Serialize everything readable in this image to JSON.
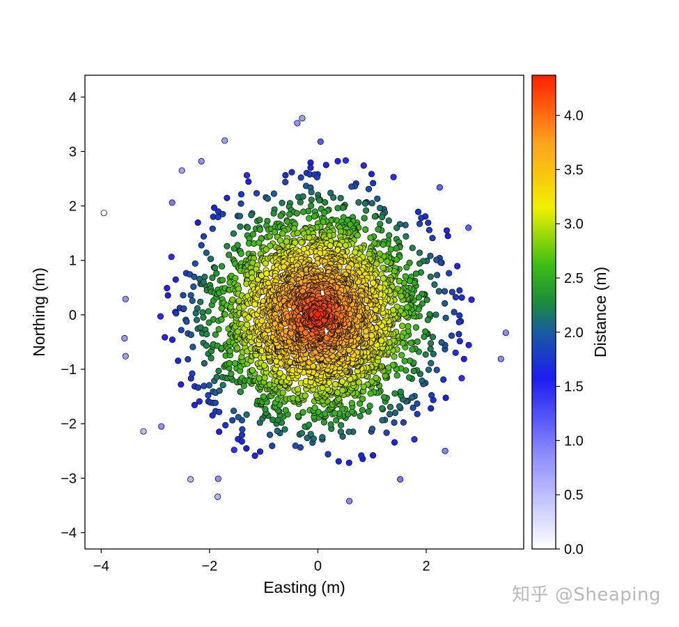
{
  "chart_data": {
    "type": "scatter",
    "title": "",
    "xlabel": "Easting (m)",
    "ylabel": "Northing (m)",
    "xlim": [
      -4.3,
      3.8
    ],
    "ylim": [
      -4.3,
      4.4
    ],
    "xticks": [
      -4,
      -2,
      0,
      2
    ],
    "xtick_labels": [
      "−4",
      "−2",
      "0",
      "2"
    ],
    "yticks": [
      -4,
      -3,
      -2,
      -1,
      0,
      1,
      2,
      3,
      4
    ],
    "ytick_labels": [
      "−4",
      "−3",
      "−2",
      "−1",
      "0",
      "1",
      "2",
      "3",
      "4"
    ],
    "grid": false,
    "point_count": 3000,
    "distribution": "2D standard normal centered at (0, 0)",
    "color_encoding": "distance from origin, reversed (4.37 - r)",
    "colorbar": {
      "label": "Distance (m)",
      "range": [
        0.0,
        4.37
      ],
      "ticks": [
        0.0,
        0.5,
        1.0,
        1.5,
        2.0,
        2.5,
        3.0,
        3.5,
        4.0
      ],
      "tick_labels": [
        "0.0",
        "0.5",
        "1.0",
        "1.5",
        "2.0",
        "2.5",
        "3.0",
        "3.5",
        "4.0"
      ],
      "colors": [
        "#ffffff",
        "#8c8cff",
        "#1c1cf0",
        "#1a5ca0",
        "#1c8c3c",
        "#3cbe14",
        "#f0f000",
        "#ffa01e",
        "#ff2000"
      ],
      "stops": [
        0.0,
        0.2,
        0.36,
        0.46,
        0.52,
        0.6,
        0.72,
        0.86,
        1.0
      ]
    },
    "outer_points": [
      {
        "x": -3.95,
        "y": 1.87
      },
      {
        "x": -3.55,
        "y": 0.29
      },
      {
        "x": -3.57,
        "y": -0.43
      },
      {
        "x": -3.55,
        "y": -0.76
      },
      {
        "x": -3.22,
        "y": -2.14
      },
      {
        "x": -2.89,
        "y": -2.05
      },
      {
        "x": -2.35,
        "y": -3.02
      },
      {
        "x": -1.84,
        "y": -3.01
      },
      {
        "x": -1.85,
        "y": -3.34
      },
      {
        "x": 0.58,
        "y": -3.42
      },
      {
        "x": 1.52,
        "y": -3.02
      },
      {
        "x": 2.35,
        "y": -2.5
      },
      {
        "x": 3.38,
        "y": -0.81
      },
      {
        "x": 3.47,
        "y": -0.33
      },
      {
        "x": -0.38,
        "y": 3.52
      },
      {
        "x": -0.29,
        "y": 3.61
      },
      {
        "x": 0.05,
        "y": 3.18
      },
      {
        "x": -1.72,
        "y": 3.2
      },
      {
        "x": -2.51,
        "y": 2.65
      },
      {
        "x": -2.15,
        "y": 2.82
      },
      {
        "x": -2.69,
        "y": 2.06
      },
      {
        "x": 2.25,
        "y": 2.34
      },
      {
        "x": 2.78,
        "y": 1.6
      }
    ]
  },
  "watermark": "知乎 @Sheaping"
}
